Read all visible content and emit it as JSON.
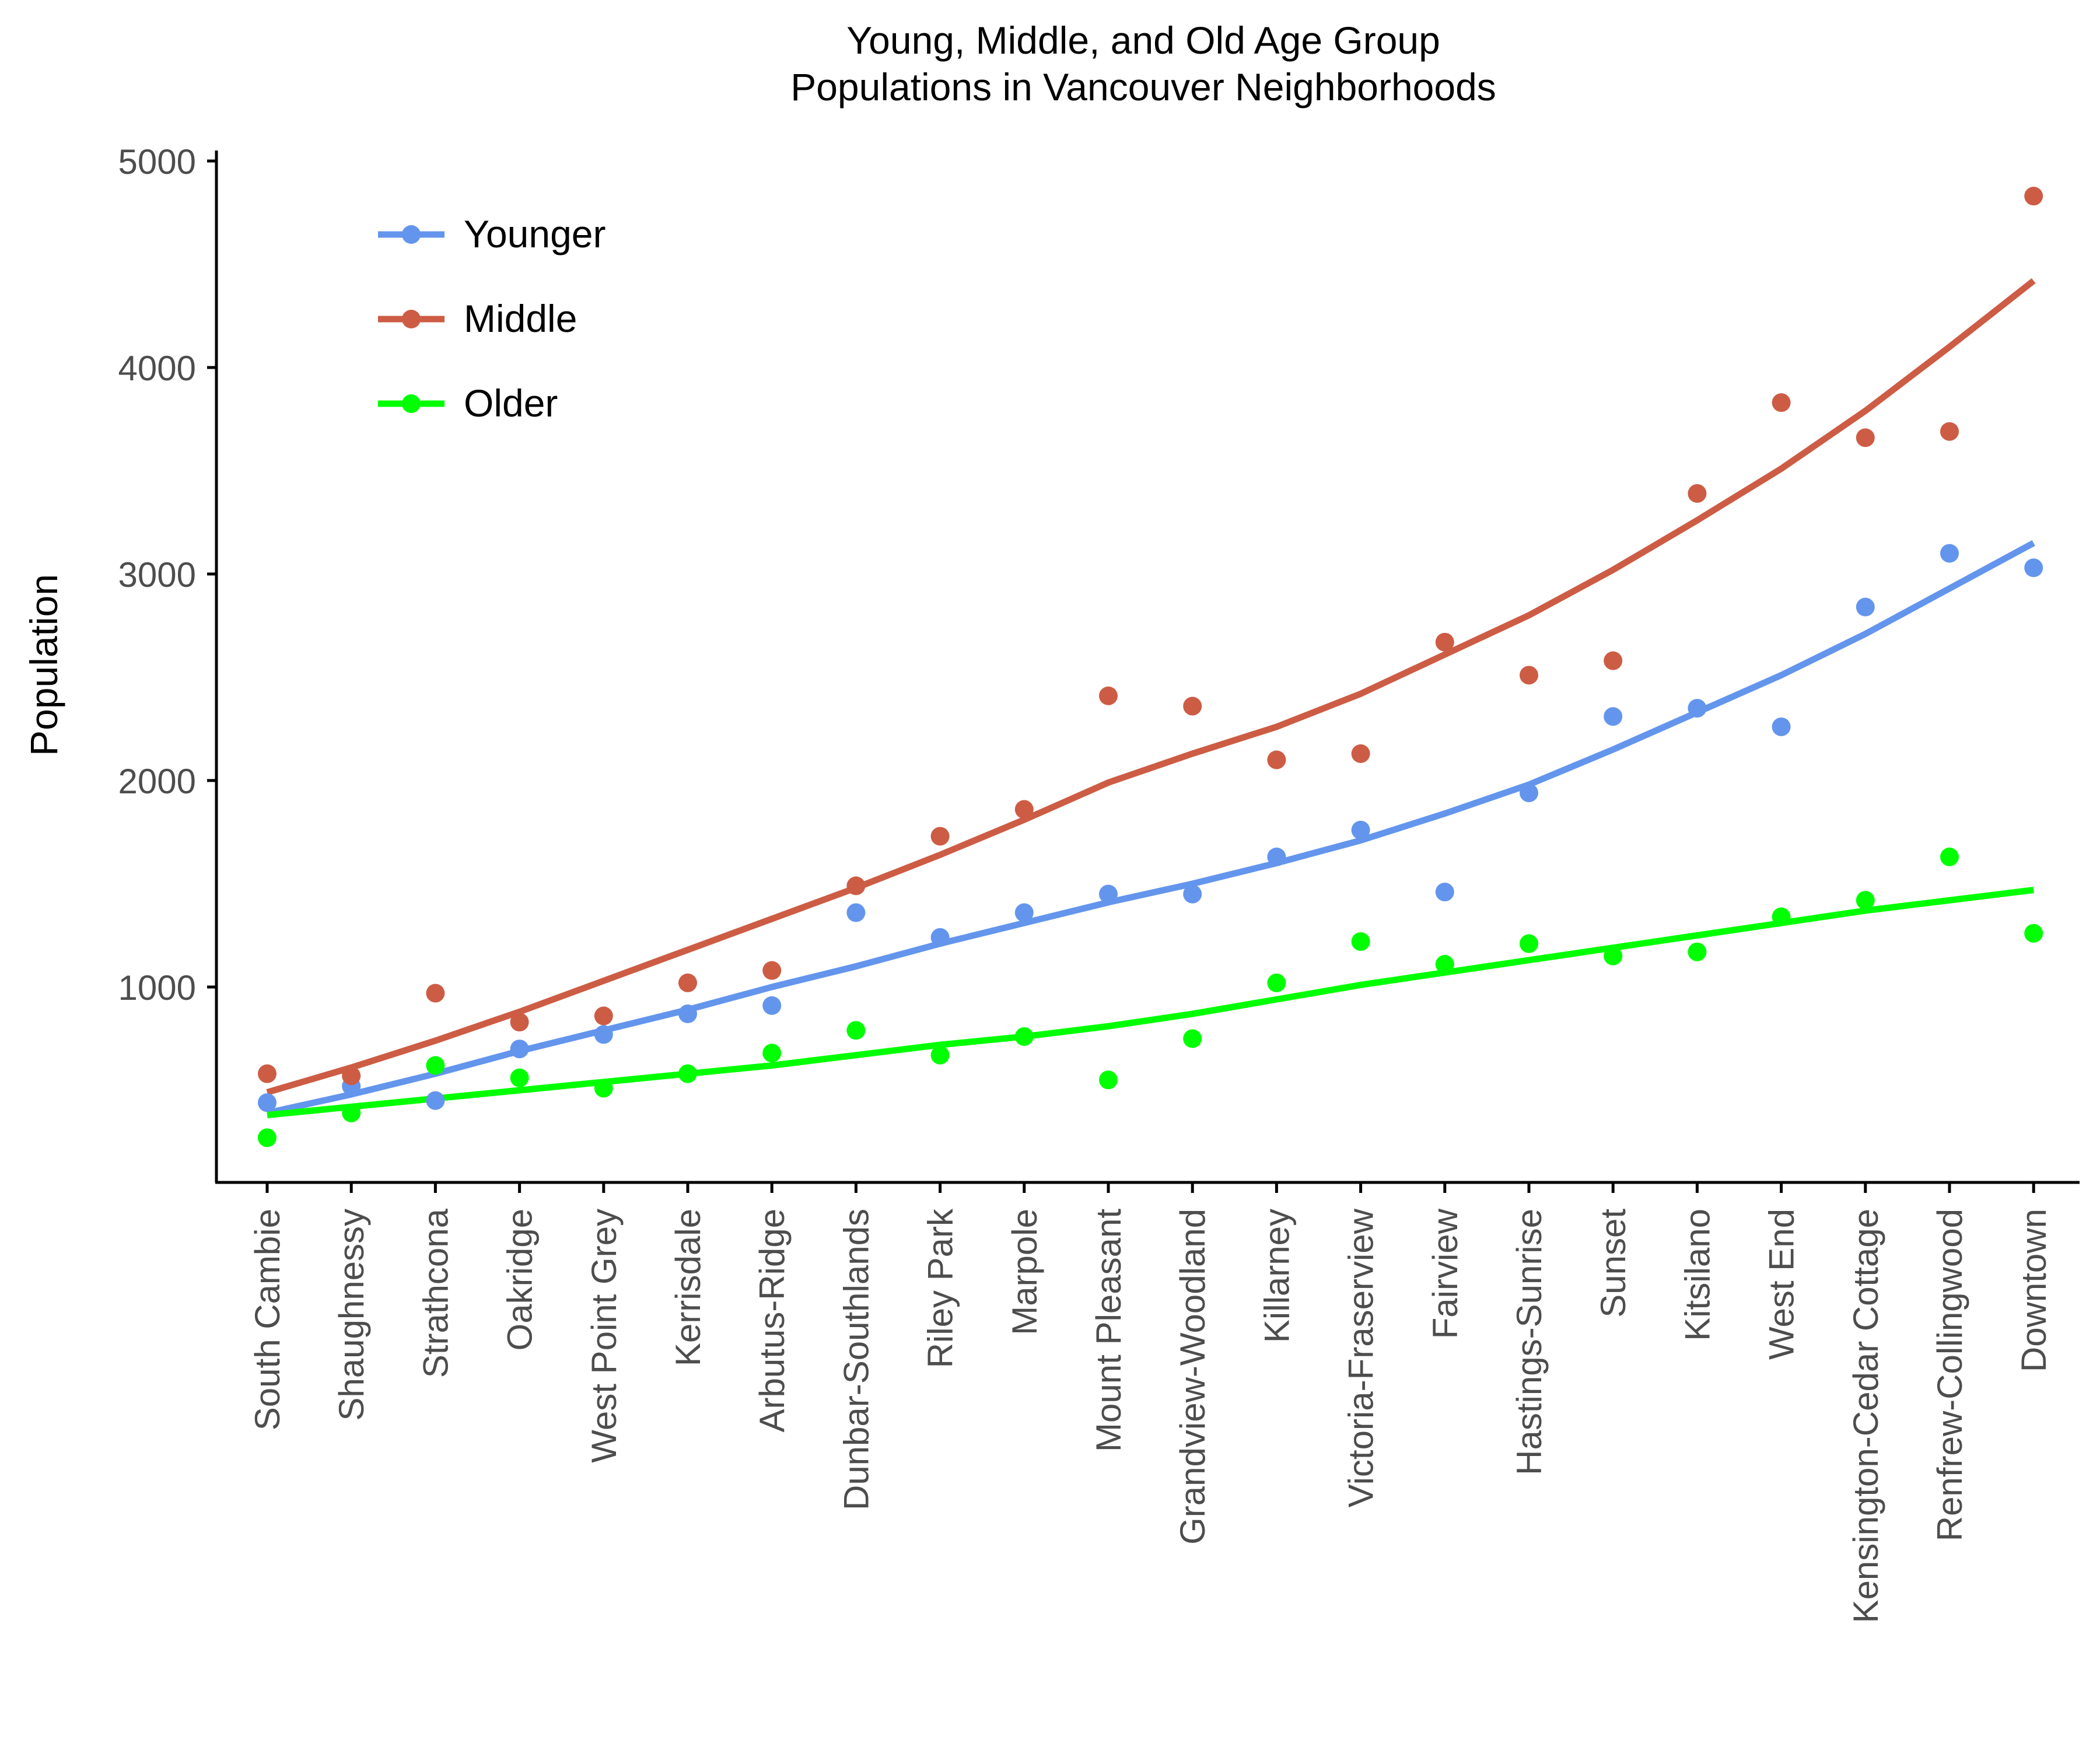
{
  "chart_data": {
    "type": "scatter",
    "title_line1": "Young, Middle, and Old Age Group",
    "title_line2": "Populations in Vancouver Neighborhoods",
    "xlabel": "",
    "ylabel": "Population",
    "ylim": [
      0,
      5000
    ],
    "yticks": [
      1000,
      2000,
      3000,
      4000,
      5000
    ],
    "grid": false,
    "legend_position": "top-left",
    "categories": [
      "South Cambie",
      "Shaughnessy",
      "Strathcona",
      "Oakridge",
      "West Point Grey",
      "Kerrisdale",
      "Arbutus-Ridge",
      "Dunbar-Southlands",
      "Riley Park",
      "Marpole",
      "Mount Pleasant",
      "Grandview-Woodland",
      "Killarney",
      "Victoria-Fraserview",
      "Fairview",
      "Hastings-Sunrise",
      "Sunset",
      "Kitsilano",
      "West End",
      "Kensington-Cedar Cottage",
      "Renfrew-Collingwood",
      "Downtown"
    ],
    "series": [
      {
        "name": "Younger",
        "color": "#6495ED",
        "values": [
          440,
          520,
          450,
          700,
          770,
          870,
          910,
          1360,
          1240,
          1360,
          1450,
          1450,
          1630,
          1760,
          1460,
          1940,
          2310,
          2350,
          2260,
          2840,
          3100,
          3030
        ],
        "trend": [
          390,
          480,
          580,
          690,
          790,
          890,
          1000,
          1100,
          1210,
          1310,
          1410,
          1500,
          1600,
          1710,
          1840,
          1980,
          2150,
          2330,
          2510,
          2710,
          2930,
          3150
        ]
      },
      {
        "name": "Middle",
        "color": "#CD5C45",
        "values": [
          580,
          570,
          970,
          830,
          860,
          1020,
          1080,
          1490,
          1730,
          1860,
          2410,
          2360,
          2100,
          2130,
          2670,
          2510,
          2580,
          3390,
          3830,
          3660,
          3690,
          4830
        ],
        "trend": [
          490,
          610,
          740,
          880,
          1030,
          1180,
          1330,
          1480,
          1640,
          1810,
          1990,
          2130,
          2260,
          2420,
          2610,
          2800,
          3020,
          3260,
          3510,
          3790,
          4100,
          4420
        ]
      },
      {
        "name": "Older",
        "color": "#00FF00",
        "values": [
          270,
          390,
          620,
          560,
          510,
          580,
          680,
          790,
          670,
          760,
          550,
          750,
          1020,
          1220,
          1110,
          1210,
          1150,
          1170,
          1340,
          1420,
          1630,
          1260
        ],
        "trend": [
          380,
          420,
          460,
          500,
          540,
          580,
          620,
          670,
          720,
          760,
          810,
          870,
          940,
          1010,
          1070,
          1130,
          1190,
          1250,
          1310,
          1370,
          1420,
          1470
        ]
      }
    ]
  }
}
